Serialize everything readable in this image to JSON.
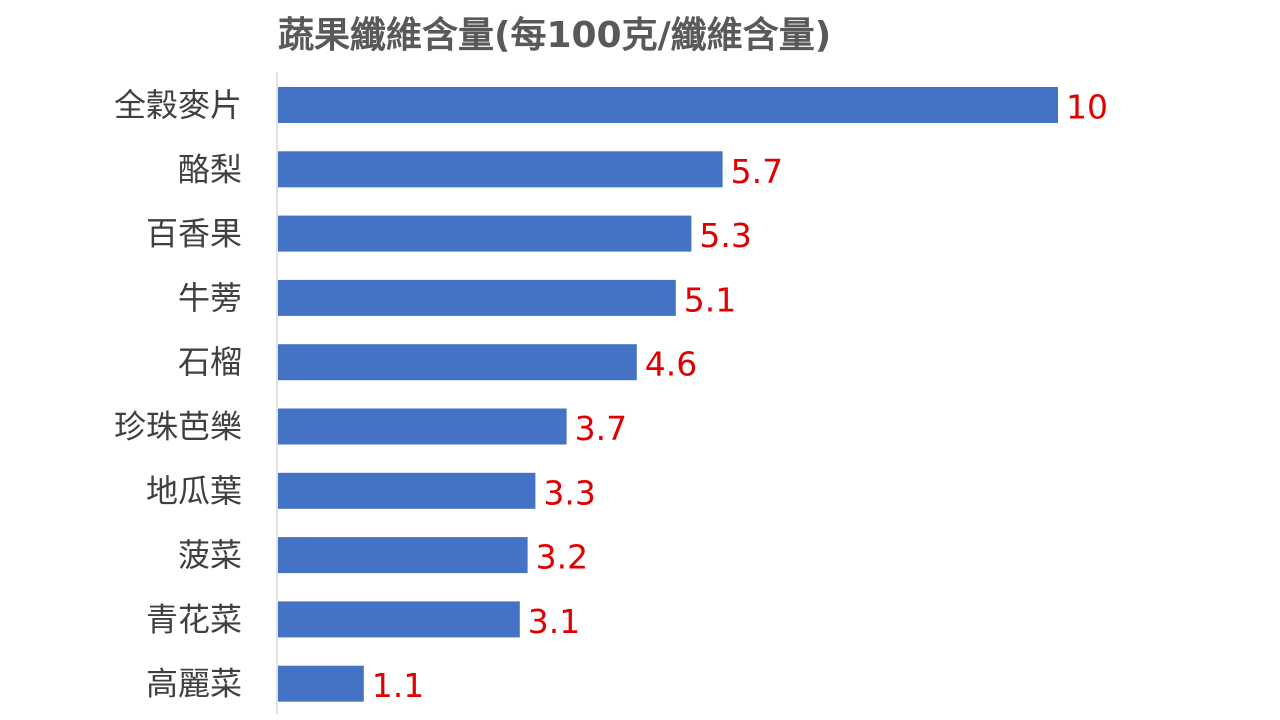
{
  "chart_data": {
    "type": "bar",
    "orientation": "horizontal",
    "title": "蔬果纖維含量(每100克/纖維含量)",
    "categories": [
      "全穀麥片",
      "酪梨",
      "百香果",
      "牛蒡",
      "石榴",
      "珍珠芭樂",
      "地瓜葉",
      "菠菜",
      "青花菜",
      "高麗菜"
    ],
    "values": [
      10,
      5.7,
      5.3,
      5.1,
      4.6,
      3.7,
      3.3,
      3.2,
      3.1,
      1.1
    ],
    "value_labels": [
      "10",
      "5.7",
      "5.3",
      "5.1",
      "4.6",
      "3.7",
      "3.3",
      "3.2",
      "3.1",
      "1.1"
    ],
    "xlim": [
      0,
      10
    ],
    "grid": false,
    "legend": "none",
    "bar_color": "#4472C4",
    "label_color": "#E00000",
    "axis_color": "#D9D9D9"
  }
}
